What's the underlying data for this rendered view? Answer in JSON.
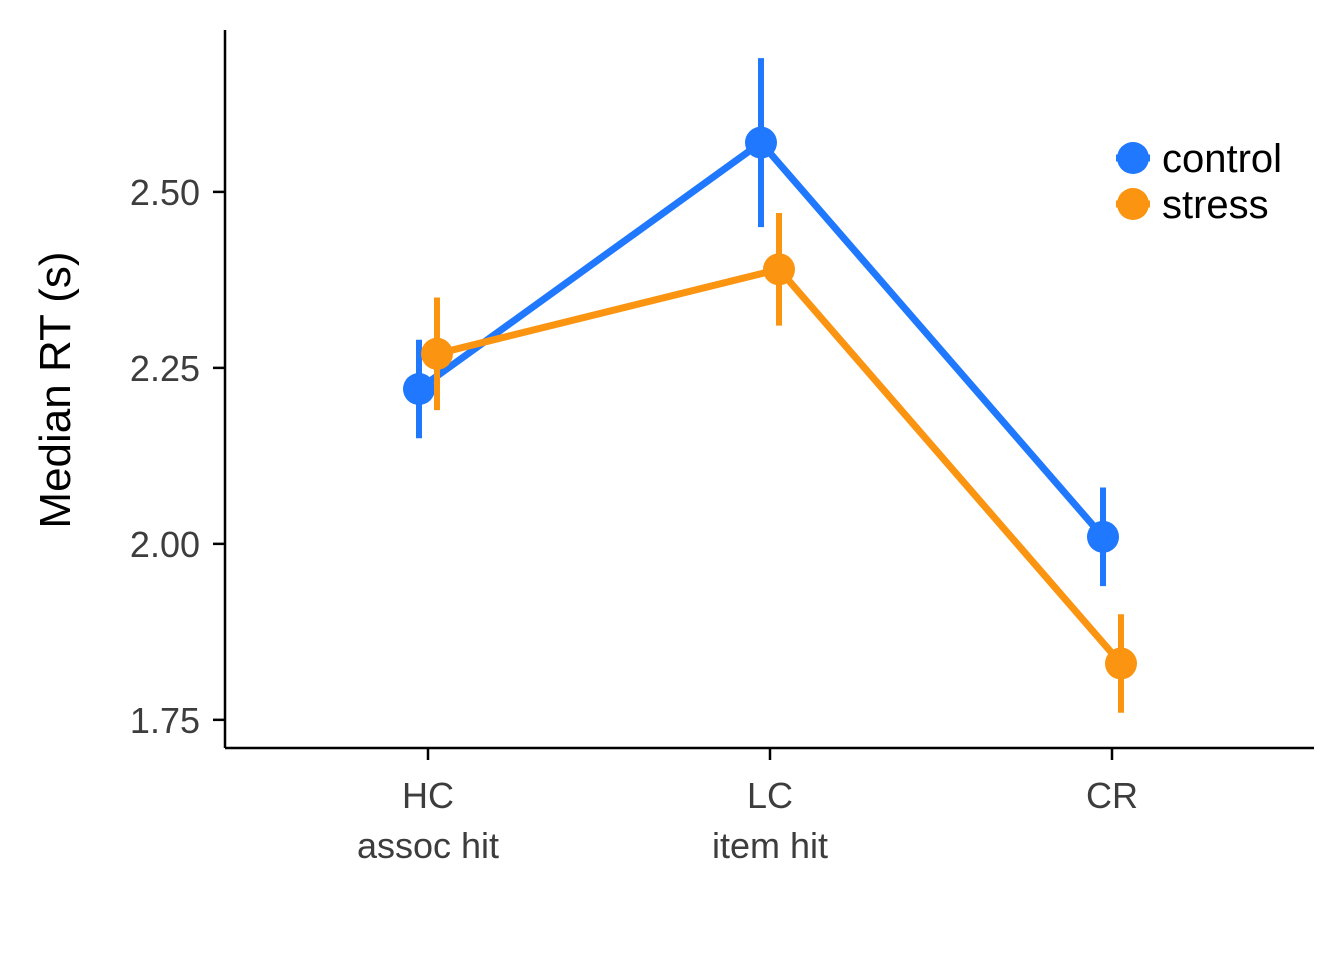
{
  "chart_data": {
    "type": "line",
    "title": "",
    "xlabel": "",
    "ylabel": "Median RT (s)",
    "categories": [
      {
        "line1": "HC",
        "line2": "assoc hit"
      },
      {
        "line1": "LC",
        "line2": "item hit"
      },
      {
        "line1": "CR",
        "line2": ""
      }
    ],
    "ylim": [
      1.71,
      2.73
    ],
    "yticks": [
      1.75,
      2.0,
      2.25,
      2.5
    ],
    "ytick_labels": [
      "1.75",
      "2.00",
      "2.25",
      "2.50"
    ],
    "grid": false,
    "legend_position": "top-right",
    "series": [
      {
        "name": "control",
        "color": "#1f78fe",
        "values": [
          2.22,
          2.57,
          2.01
        ],
        "error_low": [
          2.15,
          2.45,
          1.94
        ],
        "error_high": [
          2.29,
          2.69,
          2.08
        ]
      },
      {
        "name": "stress",
        "color": "#fb9410",
        "values": [
          2.27,
          2.39,
          1.83
        ],
        "error_low": [
          2.19,
          2.31,
          1.76
        ],
        "error_high": [
          2.35,
          2.47,
          1.9
        ]
      }
    ]
  }
}
